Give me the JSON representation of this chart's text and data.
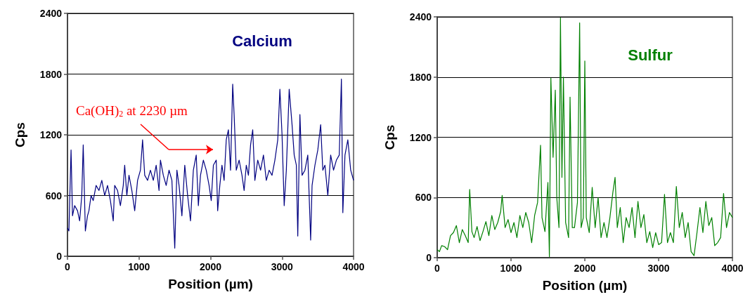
{
  "chart_data": [
    {
      "type": "line",
      "title": "Calcium",
      "xlabel": "Position (µm)",
      "ylabel": "Cps",
      "xlim": [
        0,
        4000
      ],
      "xticks": [
        0,
        1000,
        2000,
        3000,
        4000
      ],
      "ylim": [
        0,
        2400
      ],
      "yticks": [
        0,
        600,
        1200,
        1800,
        2400
      ],
      "grid": "y",
      "marker": "none",
      "line_style": "solid",
      "annotations": [
        "Ca(OH)$_{2}$ at 2230 µm"
      ],
      "series": [
        {
          "color": "#000080",
          "x": [
            0,
            20,
            50,
            70,
            100,
            140,
            170,
            200,
            220,
            250,
            280,
            300,
            330,
            360,
            400,
            440,
            480,
            520,
            560,
            600,
            640,
            660,
            700,
            740,
            780,
            800,
            830,
            860,
            900,
            940,
            980,
            1020,
            1050,
            1080,
            1120,
            1160,
            1200,
            1240,
            1280,
            1300,
            1340,
            1380,
            1420,
            1460,
            1500,
            1530,
            1560,
            1600,
            1640,
            1680,
            1720,
            1760,
            1800,
            1830,
            1860,
            1900,
            1940,
            1980,
            2010,
            2040,
            2080,
            2100,
            2130,
            2160,
            2190,
            2220,
            2250,
            2280,
            2310,
            2330,
            2360,
            2400,
            2440,
            2470,
            2500,
            2530,
            2560,
            2590,
            2620,
            2660,
            2700,
            2740,
            2780,
            2820,
            2860,
            2900,
            2940,
            2970,
            3000,
            3030,
            3060,
            3100,
            3140,
            3170,
            3200,
            3220,
            3250,
            3280,
            3320,
            3360,
            3400,
            3420,
            3460,
            3500,
            3540,
            3570,
            3600,
            3640,
            3680,
            3720,
            3760,
            3800,
            3830,
            3850,
            3880,
            3920,
            3960,
            4000
          ],
          "values": [
            280,
            250,
            1050,
            400,
            500,
            450,
            350,
            600,
            1100,
            250,
            400,
            450,
            600,
            550,
            700,
            650,
            750,
            600,
            700,
            550,
            350,
            700,
            650,
            500,
            700,
            900,
            600,
            800,
            650,
            450,
            750,
            850,
            1150,
            800,
            750,
            850,
            750,
            900,
            650,
            950,
            800,
            700,
            850,
            750,
            80,
            850,
            700,
            400,
            900,
            600,
            350,
            850,
            1000,
            500,
            800,
            950,
            850,
            700,
            550,
            900,
            950,
            450,
            700,
            900,
            750,
            1150,
            1250,
            850,
            1700,
            1400,
            850,
            950,
            800,
            650,
            900,
            800,
            1100,
            1250,
            750,
            950,
            850,
            1000,
            750,
            850,
            800,
            950,
            1150,
            1650,
            1200,
            500,
            850,
            1650,
            1300,
            1000,
            900,
            200,
            1400,
            800,
            850,
            1000,
            160,
            700,
            900,
            1050,
            1300,
            850,
            900,
            600,
            1000,
            850,
            950,
            1000,
            1750,
            430,
            1000,
            1150,
            850,
            750
          ]
        }
      ]
    },
    {
      "type": "line",
      "title": "Sulfur",
      "xlabel": "Position (µm)",
      "ylabel": "Cps",
      "xlim": [
        0,
        4000
      ],
      "xticks": [
        0,
        1000,
        2000,
        3000,
        4000
      ],
      "ylim": [
        0,
        2400
      ],
      "yticks": [
        0,
        600,
        1200,
        1800,
        2400
      ],
      "grid": "y",
      "marker": "none",
      "line_style": "solid",
      "series": [
        {
          "color": "#008000",
          "x": [
            0,
            30,
            60,
            100,
            140,
            180,
            220,
            260,
            300,
            340,
            380,
            420,
            440,
            470,
            500,
            540,
            580,
            620,
            660,
            700,
            740,
            780,
            820,
            860,
            880,
            920,
            960,
            1000,
            1040,
            1080,
            1120,
            1160,
            1200,
            1240,
            1280,
            1320,
            1360,
            1400,
            1420,
            1460,
            1500,
            1520,
            1540,
            1570,
            1600,
            1620,
            1650,
            1670,
            1690,
            1710,
            1740,
            1780,
            1800,
            1830,
            1860,
            1900,
            1930,
            1950,
            1980,
            2000,
            2020,
            2060,
            2100,
            2140,
            2180,
            2220,
            2260,
            2300,
            2340,
            2380,
            2410,
            2440,
            2480,
            2520,
            2560,
            2600,
            2640,
            2680,
            2720,
            2760,
            2800,
            2840,
            2880,
            2920,
            2960,
            3000,
            3040,
            3080,
            3120,
            3160,
            3200,
            3240,
            3280,
            3320,
            3360,
            3400,
            3440,
            3480,
            3520,
            3560,
            3600,
            3640,
            3680,
            3720,
            3760,
            3800,
            3840,
            3880,
            3920,
            3960,
            4000
          ],
          "values": [
            80,
            60,
            120,
            110,
            80,
            220,
            250,
            320,
            150,
            280,
            220,
            150,
            680,
            260,
            200,
            310,
            170,
            260,
            360,
            220,
            420,
            280,
            350,
            460,
            620,
            300,
            380,
            250,
            350,
            200,
            420,
            300,
            450,
            350,
            150,
            420,
            550,
            1120,
            400,
            260,
            750,
            10,
            1790,
            1000,
            1670,
            600,
            300,
            2390,
            800,
            1800,
            350,
            200,
            1600,
            300,
            300,
            550,
            2340,
            300,
            400,
            1960,
            400,
            250,
            700,
            300,
            600,
            200,
            350,
            200,
            400,
            650,
            800,
            300,
            500,
            150,
            400,
            300,
            500,
            200,
            560,
            300,
            430,
            150,
            260,
            100,
            250,
            130,
            150,
            630,
            150,
            250,
            150,
            710,
            300,
            450,
            200,
            350,
            60,
            20,
            250,
            500,
            250,
            560,
            320,
            400,
            120,
            150,
            200,
            640,
            300,
            450,
            400
          ]
        }
      ]
    }
  ]
}
